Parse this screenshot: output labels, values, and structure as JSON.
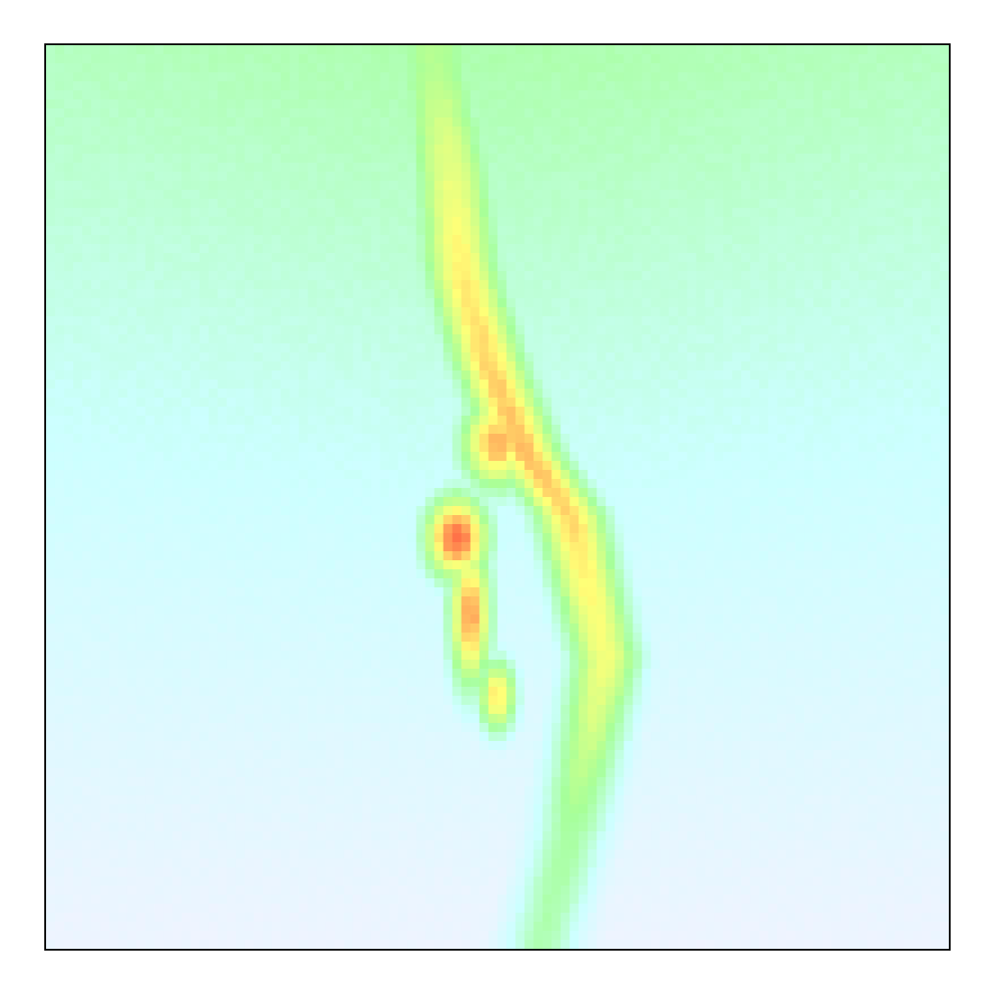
{
  "chart_data": {
    "type": "heatmap",
    "title": "",
    "xlabel": "",
    "ylabel": "",
    "axes_ticks": false,
    "grid": false,
    "legend": "none",
    "colorscale": [
      "#f4f2ff",
      "#ccffff",
      "#a6ff99",
      "#ffff77",
      "#ff6644"
    ],
    "notes_visible_text": "",
    "grid_size": [
      100,
      100
    ],
    "features": [
      {
        "kind": "background_gradient",
        "top_value": 0.4,
        "bottom_value": 0.04
      },
      {
        "kind": "ridge",
        "points": [
          [
            0.43,
            0.02,
            0.55
          ],
          [
            0.45,
            0.15,
            0.7
          ],
          [
            0.46,
            0.25,
            0.78
          ],
          [
            0.49,
            0.35,
            0.82
          ],
          [
            0.53,
            0.45,
            0.86
          ],
          [
            0.58,
            0.52,
            0.82
          ],
          [
            0.6,
            0.6,
            0.76
          ],
          [
            0.62,
            0.68,
            0.72
          ],
          [
            0.6,
            0.78,
            0.6
          ],
          [
            0.58,
            0.88,
            0.47
          ],
          [
            0.55,
            0.99,
            0.44
          ]
        ],
        "width": 0.055
      },
      {
        "kind": "hotspot",
        "center": [
          0.455,
          0.545
        ],
        "sigma": [
          0.03,
          0.04
        ],
        "peak": 0.99
      },
      {
        "kind": "hotspot",
        "center": [
          0.47,
          0.63
        ],
        "sigma": [
          0.02,
          0.07
        ],
        "peak": 0.9
      },
      {
        "kind": "hotspot",
        "center": [
          0.5,
          0.44
        ],
        "sigma": [
          0.035,
          0.045
        ],
        "peak": 0.88
      },
      {
        "kind": "hotspot",
        "center": [
          0.5,
          0.72
        ],
        "sigma": [
          0.018,
          0.035
        ],
        "peak": 0.8
      }
    ]
  }
}
